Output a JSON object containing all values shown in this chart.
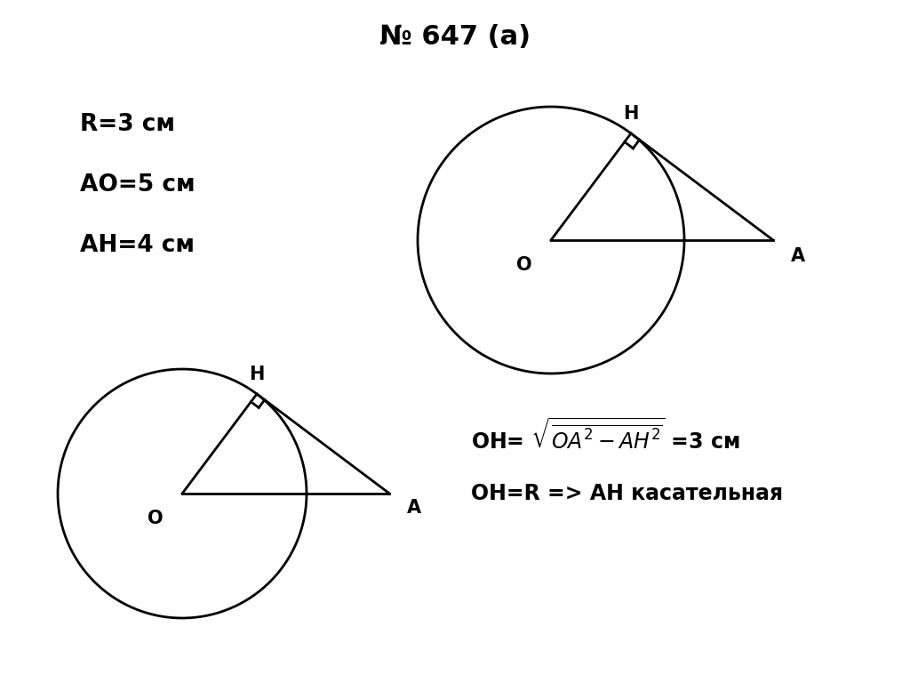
{
  "title": "№ 647 (a)",
  "given_text": [
    "R=3 см",
    "AO=5 см",
    "AH=4 см"
  ],
  "bg_color": "#ffffff",
  "line_color": "#000000",
  "fontsize_title": 22,
  "fontsize_labels": 15,
  "fontsize_given": 19,
  "fontsize_formula": 17,
  "lw": 2.0
}
